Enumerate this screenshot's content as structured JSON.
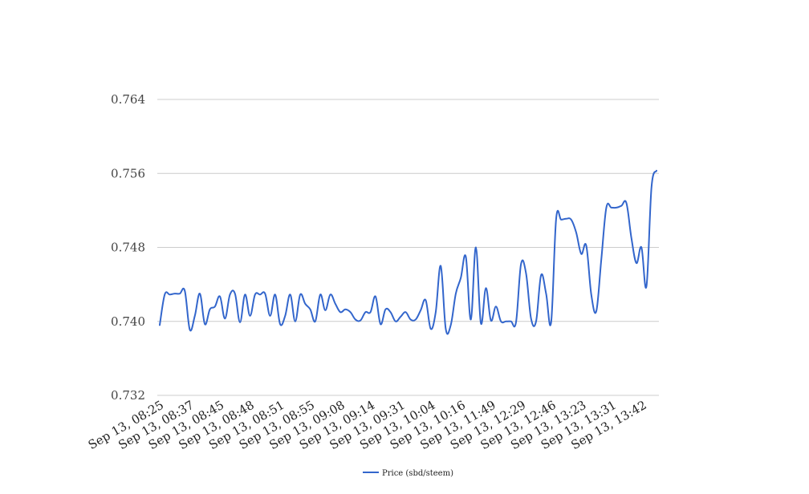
{
  "chart_data": {
    "type": "line",
    "title": "",
    "xlabel": "",
    "ylabel": "",
    "ylim": [
      0.732,
      0.764
    ],
    "y_ticks": [
      "0.732",
      "0.740",
      "0.748",
      "0.756",
      "0.764"
    ],
    "x_tick_labels": [
      "Sep 13, 08:25",
      "Sep 13, 08:37",
      "Sep 13, 08:45",
      "Sep 13, 08:48",
      "Sep 13, 08:51",
      "Sep 13, 08:55",
      "Sep 13, 09:08",
      "Sep 13, 09:14",
      "Sep 13, 09:31",
      "Sep 13, 10:04",
      "Sep 13, 10:16",
      "Sep 13, 11:49",
      "Sep 13, 12:29",
      "Sep 13, 12:46",
      "Sep 13, 13:23",
      "Sep 13, 13:31",
      "Sep 13, 13:42"
    ],
    "grid": true,
    "legend_position": "bottom",
    "series": [
      {
        "name": "Price (sbd/steem)",
        "color": "#3366cc",
        "values": [
          0.7396,
          0.7429,
          0.7429,
          0.743,
          0.743,
          0.7433,
          0.7391,
          0.7406,
          0.743,
          0.7397,
          0.7413,
          0.7416,
          0.7427,
          0.7403,
          0.7429,
          0.743,
          0.7399,
          0.7429,
          0.7406,
          0.7429,
          0.7429,
          0.743,
          0.7406,
          0.7429,
          0.7397,
          0.7406,
          0.7429,
          0.74,
          0.7429,
          0.7419,
          0.7413,
          0.74,
          0.7429,
          0.7412,
          0.7429,
          0.7419,
          0.741,
          0.7413,
          0.741,
          0.7402,
          0.7401,
          0.741,
          0.741,
          0.7427,
          0.7397,
          0.7413,
          0.741,
          0.74,
          0.7405,
          0.741,
          0.7402,
          0.7402,
          0.7412,
          0.7423,
          0.7392,
          0.741,
          0.746,
          0.7392,
          0.7396,
          0.743,
          0.7447,
          0.747,
          0.7402,
          0.748,
          0.7398,
          0.7436,
          0.7401,
          0.7416,
          0.74,
          0.74,
          0.74,
          0.7399,
          0.7462,
          0.7452,
          0.7403,
          0.74,
          0.745,
          0.743,
          0.7399,
          0.7511,
          0.751,
          0.7511,
          0.751,
          0.7496,
          0.7473,
          0.7482,
          0.7429,
          0.7411,
          0.7467,
          0.7523,
          0.7523,
          0.7523,
          0.7525,
          0.7528,
          0.749,
          0.7463,
          0.748,
          0.7438,
          0.7545,
          0.7563
        ]
      }
    ]
  }
}
